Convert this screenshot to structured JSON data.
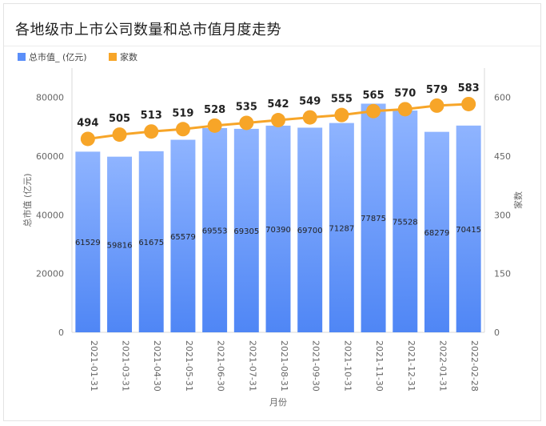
{
  "chart_data": {
    "type": "bar+line",
    "title": "各地级市上市公司数量和总市值月度走势",
    "xlabel": "月份",
    "ylabel_left": "总市值 (亿元)",
    "ylabel_right": "家数",
    "categories": [
      "2021-01-31",
      "2021-03-31",
      "2021-04-30",
      "2021-05-31",
      "2021-06-30",
      "2021-07-31",
      "2021-08-31",
      "2021-09-30",
      "2021-10-31",
      "2021-11-30",
      "2021-12-31",
      "2022-01-31",
      "2022-02-28"
    ],
    "ylim_left": [
      0,
      90000
    ],
    "yticks_left": [
      0,
      20000,
      40000,
      60000,
      80000
    ],
    "ylim_right": [
      0,
      675
    ],
    "yticks_right": [
      0,
      150,
      300,
      450,
      600
    ],
    "series": [
      {
        "name": "总市值_ (亿元)",
        "type": "bar",
        "axis": "left",
        "color": "#5b8ff9",
        "values": [
          61529,
          59816,
          61675,
          65579,
          69553,
          69305,
          70390,
          69700,
          71287,
          77875,
          75528,
          68279,
          70415
        ]
      },
      {
        "name": "家数",
        "type": "line",
        "axis": "right",
        "color": "#f7a528",
        "values": [
          494,
          505,
          513,
          519,
          528,
          535,
          542,
          549,
          555,
          565,
          570,
          579,
          583
        ]
      }
    ],
    "legend_position": "top-left",
    "grid": false
  }
}
